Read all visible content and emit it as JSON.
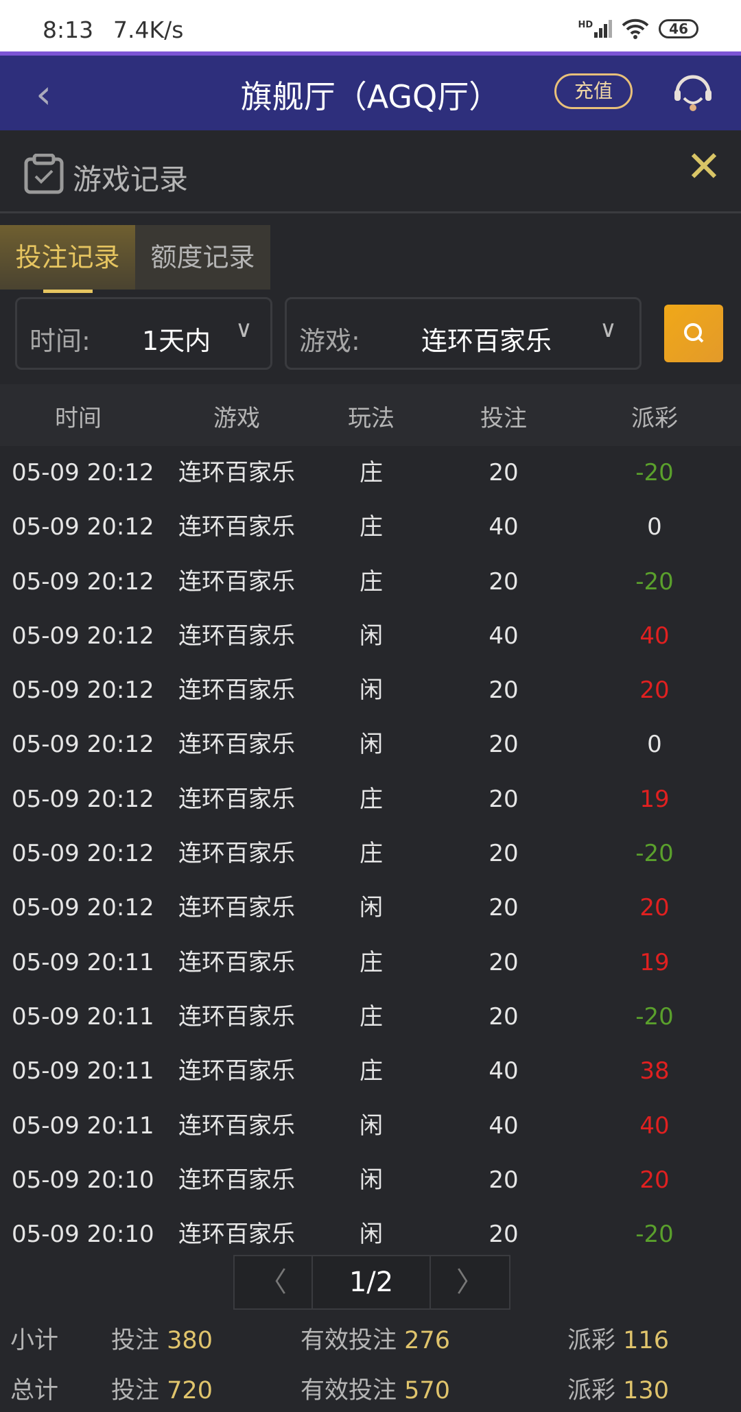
{
  "status_bar": {
    "time": "8:13",
    "speed": "7.4K/s",
    "battery": "46",
    "signal_label": "HD"
  },
  "nav": {
    "title": "旗舰厅（AGQ厅）",
    "recharge": "充值"
  },
  "panel": {
    "title": "游戏记录"
  },
  "tabs": [
    {
      "label": "投注记录",
      "active": true
    },
    {
      "label": "额度记录",
      "active": false
    }
  ],
  "filters": {
    "time_label": "时间:",
    "time_value": "1天内",
    "game_label": "游戏:",
    "game_value": "连环百家乐"
  },
  "table": {
    "headers": [
      "时间",
      "游戏",
      "玩法",
      "投注",
      "派彩"
    ],
    "rows": [
      {
        "time": "05-09 20:12",
        "game": "连环百家乐",
        "play": "庄",
        "bet": "20",
        "payout": "-20"
      },
      {
        "time": "05-09 20:12",
        "game": "连环百家乐",
        "play": "庄",
        "bet": "40",
        "payout": "0"
      },
      {
        "time": "05-09 20:12",
        "game": "连环百家乐",
        "play": "庄",
        "bet": "20",
        "payout": "-20"
      },
      {
        "time": "05-09 20:12",
        "game": "连环百家乐",
        "play": "闲",
        "bet": "40",
        "payout": "40"
      },
      {
        "time": "05-09 20:12",
        "game": "连环百家乐",
        "play": "闲",
        "bet": "20",
        "payout": "20"
      },
      {
        "time": "05-09 20:12",
        "game": "连环百家乐",
        "play": "闲",
        "bet": "20",
        "payout": "0"
      },
      {
        "time": "05-09 20:12",
        "game": "连环百家乐",
        "play": "庄",
        "bet": "20",
        "payout": "19"
      },
      {
        "time": "05-09 20:12",
        "game": "连环百家乐",
        "play": "庄",
        "bet": "20",
        "payout": "-20"
      },
      {
        "time": "05-09 20:12",
        "game": "连环百家乐",
        "play": "闲",
        "bet": "20",
        "payout": "20"
      },
      {
        "time": "05-09 20:11",
        "game": "连环百家乐",
        "play": "庄",
        "bet": "20",
        "payout": "19"
      },
      {
        "time": "05-09 20:11",
        "game": "连环百家乐",
        "play": "庄",
        "bet": "20",
        "payout": "-20"
      },
      {
        "time": "05-09 20:11",
        "game": "连环百家乐",
        "play": "庄",
        "bet": "40",
        "payout": "38"
      },
      {
        "time": "05-09 20:11",
        "game": "连环百家乐",
        "play": "闲",
        "bet": "40",
        "payout": "40"
      },
      {
        "time": "05-09 20:10",
        "game": "连环百家乐",
        "play": "闲",
        "bet": "20",
        "payout": "20"
      },
      {
        "time": "05-09 20:10",
        "game": "连环百家乐",
        "play": "闲",
        "bet": "20",
        "payout": "-20"
      }
    ]
  },
  "colors": {
    "positive": "#e02020",
    "negative": "#5aa02c",
    "zero": "#e6e6e6",
    "accent": "#e0c46c"
  },
  "pager": {
    "page": "1/2"
  },
  "summary": {
    "subtotal": {
      "label": "小计",
      "bet_label": "投注",
      "bet": "380",
      "valid_label": "有效投注",
      "valid": "276",
      "payout_label": "派彩",
      "payout": "116"
    },
    "total": {
      "label": "总计",
      "bet_label": "投注",
      "bet": "720",
      "valid_label": "有效投注",
      "valid": "570",
      "payout_label": "派彩",
      "payout": "130"
    }
  }
}
